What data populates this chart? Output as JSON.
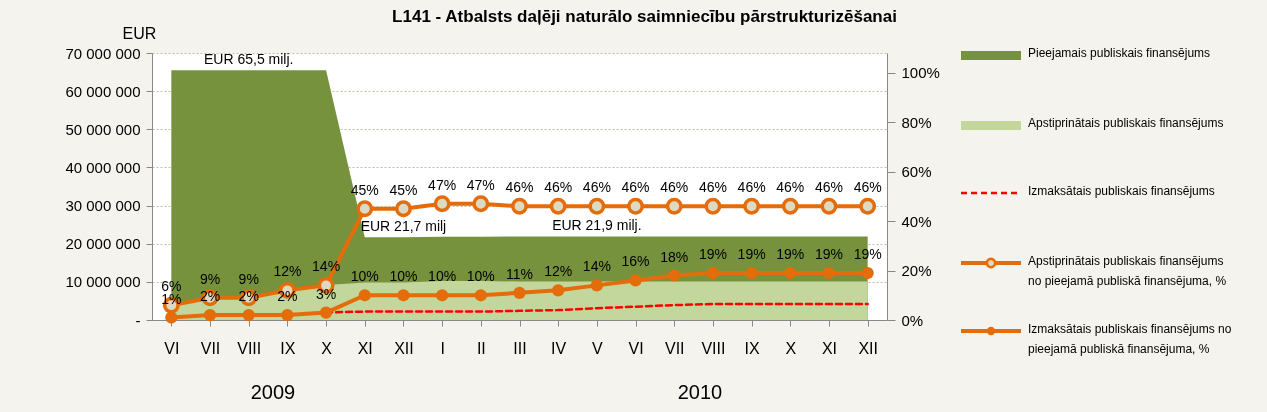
{
  "chart_data": {
    "type": "area",
    "title": "L141 - Atbalsts daļēji naturālo saimniecību pārstrukturizēšanai",
    "ylabel": "EUR",
    "categories": [
      "VI",
      "VII",
      "VIII",
      "IX",
      "X",
      "XI",
      "XII",
      "I",
      "II",
      "III",
      "IV",
      "V",
      "VI",
      "VII",
      "VIII",
      "IX",
      "X",
      "XI",
      "XII"
    ],
    "series": [
      {
        "name": "Pieejamais publiskais finansējums",
        "color": "#76923c",
        "values": [
          65500000,
          65500000,
          65500000,
          65500000,
          65500000,
          21700000,
          21700000,
          21800000,
          21800000,
          21900000,
          21900000,
          21900000,
          21900000,
          21900000,
          21900000,
          21900000,
          21900000,
          21900000,
          21900000
        ]
      },
      {
        "name": "Apstiprinātais publiskais finansējums",
        "color": "#c3d69b",
        "values": [
          3900000,
          5900000,
          5900000,
          7900000,
          9200000,
          9800000,
          9800000,
          10200000,
          10200000,
          10100000,
          10100000,
          10100000,
          10100000,
          10100000,
          10100000,
          10100000,
          10100000,
          10100000,
          10100000
        ]
      },
      {
        "name": "Izmaksātais publiskais finansējums",
        "type": "line",
        "color": "#ff0000",
        "line_style": "dashed",
        "marker": "none",
        "values": [
          null,
          null,
          null,
          null,
          2000000,
          2200000,
          2200000,
          2200000,
          2200000,
          2400000,
          2600000,
          3100000,
          3500000,
          3900000,
          4200000,
          4200000,
          4200000,
          4200000,
          4200000
        ]
      },
      {
        "name": "Apstiprinātais publiskais finansējums no pieejamā publiskā finansējuma, %",
        "type": "line",
        "axis": "y2",
        "color": "#e46c0a",
        "marker": "circle",
        "line_style": "solid",
        "values": [
          6,
          9,
          9,
          12,
          14,
          45,
          45,
          47,
          47,
          46,
          46,
          46,
          46,
          46,
          46,
          46,
          46,
          46,
          46
        ],
        "value_labels": [
          "6%",
          "9%",
          "9%",
          "12%",
          "14%",
          "45%",
          "45%",
          "47%",
          "47%",
          "46%",
          "46%",
          "46%",
          "46%",
          "46%",
          "46%",
          "46%",
          "46%",
          "46%",
          "46%"
        ]
      },
      {
        "name": "Izmaksātais publiskais finansējums no pieejamā publiskā finansējuma, %",
        "type": "line",
        "axis": "y2",
        "color": "#e46c0a",
        "marker": "circle",
        "line_style": "solid",
        "values": [
          1,
          2,
          2,
          2,
          3,
          10,
          10,
          10,
          10,
          11,
          12,
          14,
          16,
          18,
          19,
          19,
          19,
          19,
          19
        ],
        "value_labels": [
          "1%",
          "2%",
          "2%",
          "2%",
          "3%",
          "10%",
          "10%",
          "10%",
          "10%",
          "11%",
          "12%",
          "14%",
          "16%",
          "18%",
          "19%",
          "19%",
          "19%",
          "19%",
          "19%"
        ]
      }
    ],
    "ylim": [
      0,
      70000000
    ],
    "yticks": [
      {
        "value": 0,
        "label": "-"
      },
      {
        "value": 10000000,
        "label": "10 000 000"
      },
      {
        "value": 20000000,
        "label": "20 000 000"
      },
      {
        "value": 30000000,
        "label": "30 000 000"
      },
      {
        "value": 40000000,
        "label": "40 000 000"
      },
      {
        "value": 50000000,
        "label": "50 000 000"
      },
      {
        "value": 60000000,
        "label": "60 000 000"
      },
      {
        "value": 70000000,
        "label": "70 000 000"
      }
    ],
    "y2lim": [
      0,
      108
    ],
    "y2ticks": [
      {
        "value": 0,
        "label": "0%"
      },
      {
        "value": 20,
        "label": "20%"
      },
      {
        "value": 40,
        "label": "40%"
      },
      {
        "value": 60,
        "label": "60%"
      },
      {
        "value": 80,
        "label": "80%"
      },
      {
        "value": 100,
        "label": "100%"
      }
    ],
    "annotations": [
      {
        "text": "EUR 65,5 milj.",
        "x": "VIII",
        "y": 65500000
      },
      {
        "text": "EUR 21,7 milj",
        "x": "XII",
        "y": 21700000
      },
      {
        "text": "EUR 21,9 milj.",
        "x": "V",
        "y": 21900000
      },
      "2009",
      "2010"
    ],
    "grid": "y",
    "legend": "right"
  }
}
